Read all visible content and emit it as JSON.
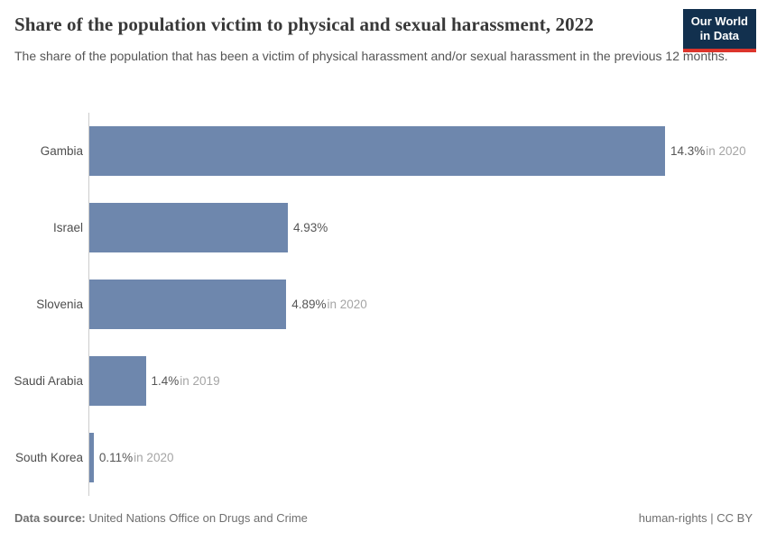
{
  "header": {
    "title": "Share of the population victim to physical and sexual harassment, 2022",
    "subtitle": "The share of the population that has been a victim of physical harassment and/or sexual harassment in the previous 12 months.",
    "logo_line1": "Our World",
    "logo_line2": "in Data"
  },
  "colors": {
    "bar": "#6e87ad",
    "logo_bg": "#12304e",
    "logo_accent": "#dc352c",
    "axis": "#cccccc"
  },
  "chart_data": {
    "type": "bar",
    "orientation": "horizontal",
    "title": "Share of the population victim to physical and sexual harassment, 2022",
    "unit": "%",
    "grid": false,
    "xlim": [
      0,
      14.3
    ],
    "categories": [
      "Gambia",
      "Israel",
      "Slovenia",
      "Saudi Arabia",
      "South Korea"
    ],
    "values": [
      14.3,
      4.93,
      4.89,
      1.4,
      0.11
    ],
    "bars": [
      {
        "label": "Gambia",
        "value": 14.3,
        "value_label": "14.3%",
        "suffix": "in 2020"
      },
      {
        "label": "Israel",
        "value": 4.93,
        "value_label": "4.93%",
        "suffix": ""
      },
      {
        "label": "Slovenia",
        "value": 4.89,
        "value_label": "4.89%",
        "suffix": "in 2020"
      },
      {
        "label": "Saudi Arabia",
        "value": 1.4,
        "value_label": "1.4%",
        "suffix": "in 2019"
      },
      {
        "label": "South Korea",
        "value": 0.11,
        "value_label": "0.11%",
        "suffix": "in 2020"
      }
    ]
  },
  "footer": {
    "source_label": "Data source:",
    "source_text": "United Nations Office on Drugs and Crime",
    "links": "human-rights | CC BY"
  }
}
